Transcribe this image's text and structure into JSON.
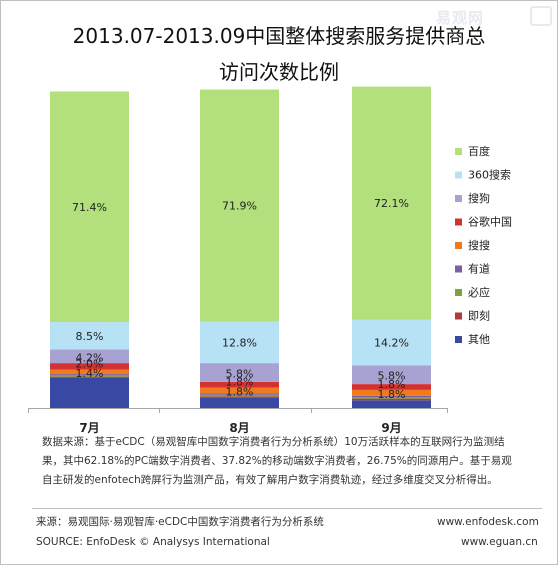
{
  "watermark_text": "易观网",
  "chart_data": {
    "type": "bar",
    "stacked": true,
    "percent": true,
    "title": "2013.07-2013.09中国整体搜索服务提供商总访问次数比例",
    "title_lines": [
      "2013.07-2013.09中国整体搜索服务提供商总",
      "访问次数比例"
    ],
    "categories": [
      "7月",
      "8月",
      "9月"
    ],
    "ylim": [
      0,
      100
    ],
    "grid": false,
    "legend_position": "right",
    "series": [
      {
        "name": "其他",
        "color": "#3949a3",
        "values": [
          9.4,
          3.2,
          2.4
        ]
      },
      {
        "name": "即刻",
        "color": "#b23a3a",
        "values": [
          0.3,
          0.4,
          0.5
        ]
      },
      {
        "name": "必应",
        "color": "#7ea23c",
        "values": [
          0.4,
          0.5,
          0.4
        ]
      },
      {
        "name": "有道",
        "color": "#7b5ea7",
        "values": [
          0.4,
          0.4,
          0.5
        ]
      },
      {
        "name": "搜搜",
        "color": "#f07b1e",
        "values": [
          1.4,
          1.8,
          1.8
        ]
      },
      {
        "name": "谷歌中国",
        "color": "#d43232",
        "values": [
          2.0,
          1.8,
          1.8
        ]
      },
      {
        "name": "搜狗",
        "color": "#a8a2d3",
        "values": [
          4.2,
          5.8,
          5.8
        ]
      },
      {
        "name": "360搜索",
        "color": "#b7e2f5",
        "values": [
          8.5,
          12.8,
          14.2
        ]
      },
      {
        "name": "百度",
        "color": "#b3e07c",
        "values": [
          71.4,
          71.9,
          72.1
        ]
      }
    ],
    "data_labels": [
      {
        "category": 0,
        "series": "百度",
        "text": "71.4%"
      },
      {
        "category": 0,
        "series": "360搜索",
        "text": "8.5%"
      },
      {
        "category": 0,
        "series": "搜狗",
        "text": "4.2%"
      },
      {
        "category": 0,
        "series": "谷歌中国",
        "text": "2.0%"
      },
      {
        "category": 0,
        "series": "搜搜",
        "text": "1.4%"
      },
      {
        "category": 1,
        "series": "百度",
        "text": "71.9%"
      },
      {
        "category": 1,
        "series": "360搜索",
        "text": "12.8%"
      },
      {
        "category": 1,
        "series": "搜狗",
        "text": "5.8%"
      },
      {
        "category": 1,
        "series": "谷歌中国",
        "text": "1.8%"
      },
      {
        "category": 1,
        "series": "搜搜",
        "text": "1.8%"
      },
      {
        "category": 2,
        "series": "百度",
        "text": "72.1%"
      },
      {
        "category": 2,
        "series": "360搜索",
        "text": "14.2%"
      },
      {
        "category": 2,
        "series": "搜狗",
        "text": "5.8%"
      },
      {
        "category": 2,
        "series": "谷歌中国",
        "text": "1.8%"
      },
      {
        "category": 2,
        "series": "搜搜",
        "text": "1.8%"
      }
    ],
    "legend_order": [
      "百度",
      "360搜索",
      "搜狗",
      "谷歌中国",
      "搜搜",
      "有道",
      "必应",
      "即刻",
      "其他"
    ]
  },
  "note_lines": [
    "数据来源：基于eCDC（易观智库中国数字消费者行为分析系统）10万活跃样本的互联网行为监测结",
    "果，其中62.18%的PC端数字消费者、37.82%的移动端数字消费者，26.75%的同源用户。基于易观",
    "自主研发的enfotech跨屏行为监测产品，有效了解用户数字消费轨迹，经过多维度交叉分析得出。"
  ],
  "footer": {
    "source_cn": "来源：易观国际·易观智库·eCDC中国数字消费者行为分析系统",
    "source_en": "SOURCE: EnfoDesk © Analysys International",
    "url1": "www.enfodesk.com",
    "url2": "www.eguan.cn"
  }
}
